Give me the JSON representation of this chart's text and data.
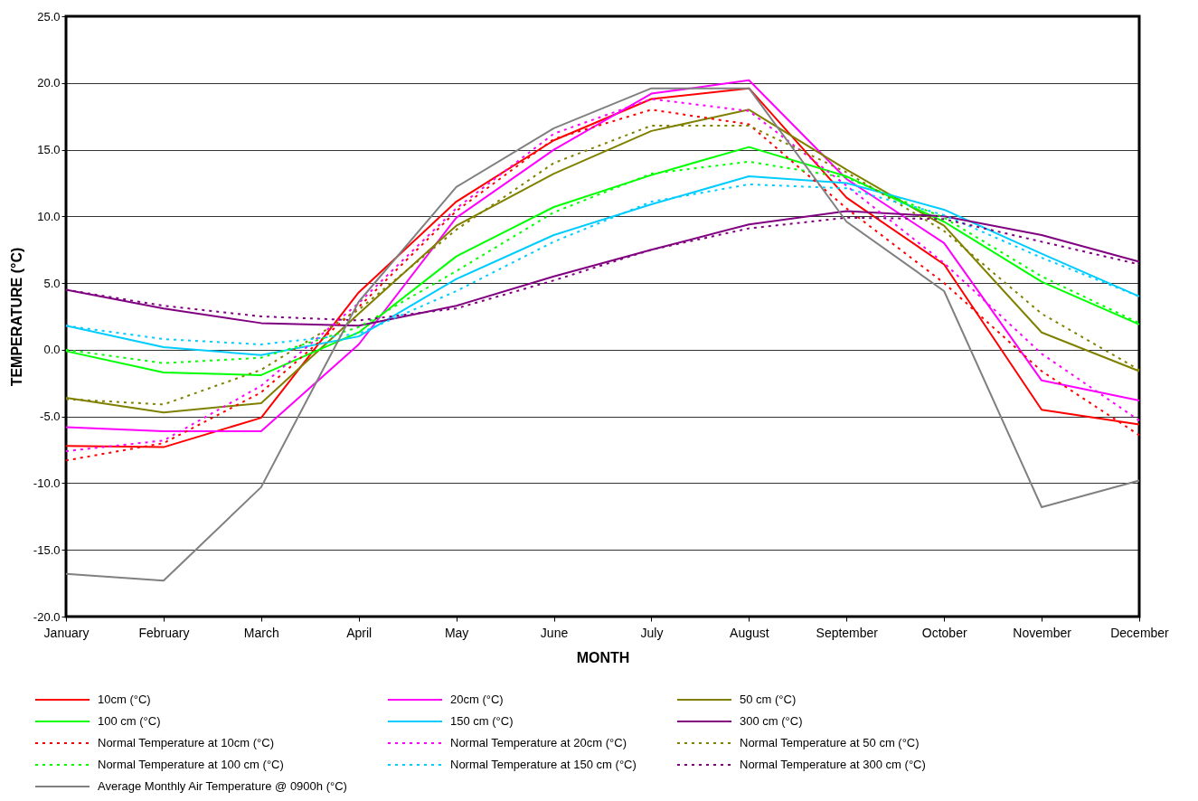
{
  "chart_data": {
    "type": "line",
    "xlabel": "MONTH",
    "ylabel": "TEMPERATURE (°C)",
    "categories": [
      "January",
      "February",
      "March",
      "April",
      "May",
      "June",
      "July",
      "August",
      "September",
      "October",
      "November",
      "December"
    ],
    "ylim": [
      -20,
      25
    ],
    "yticks": [
      {
        "value": -20,
        "label": "-20.0"
      },
      {
        "value": -15,
        "label": "-15.0"
      },
      {
        "value": -10,
        "label": "-10.0"
      },
      {
        "value": -5,
        "label": "-5.0"
      },
      {
        "value": 0,
        "label": "0.0"
      },
      {
        "value": 5,
        "label": "5.0"
      },
      {
        "value": 10,
        "label": "10.0"
      },
      {
        "value": 15,
        "label": "15.0"
      },
      {
        "value": 20,
        "label": "20.0"
      },
      {
        "value": 25,
        "label": "25.0"
      }
    ],
    "grid": "y",
    "legend": "bottom",
    "marker": "none",
    "series": [
      {
        "name": "10cm (°C)",
        "color": "#ff0000",
        "line_style": "solid",
        "values": [
          -7.2,
          -7.3,
          -5.1,
          4.3,
          11.1,
          15.7,
          18.8,
          19.6,
          11.4,
          6.4,
          -4.5,
          -5.6
        ]
      },
      {
        "name": "20cm (°C)",
        "color": "#ff00ff",
        "line_style": "solid",
        "values": [
          -5.8,
          -6.1,
          -6.1,
          0.4,
          9.9,
          15.0,
          19.2,
          20.2,
          12.8,
          8.0,
          -2.3,
          -3.8
        ]
      },
      {
        "name": "50 cm (°C)",
        "color": "#808000",
        "line_style": "solid",
        "values": [
          -3.6,
          -4.7,
          -4.0,
          2.7,
          9.3,
          13.2,
          16.4,
          18.0,
          13.5,
          9.3,
          1.3,
          -1.6
        ]
      },
      {
        "name": "100 cm (°C)",
        "color": "#00ff00",
        "line_style": "solid",
        "values": [
          -0.1,
          -1.7,
          -1.9,
          1.3,
          7.0,
          10.7,
          13.1,
          15.2,
          13.0,
          9.6,
          5.1,
          1.9
        ]
      },
      {
        "name": "150 cm (°C)",
        "color": "#00ccff",
        "line_style": "solid",
        "values": [
          1.8,
          0.2,
          -0.4,
          1.0,
          5.3,
          8.6,
          10.9,
          13.0,
          12.5,
          10.5,
          7.2,
          4.0
        ]
      },
      {
        "name": "300 cm (°C)",
        "color": "#800080",
        "line_style": "solid",
        "values": [
          4.5,
          3.1,
          2.0,
          1.8,
          3.3,
          5.5,
          7.5,
          9.4,
          10.4,
          10.0,
          8.6,
          6.6
        ]
      },
      {
        "name": "Normal Temperature at 10cm (°C)",
        "color": "#ff0000",
        "line_style": "dotted",
        "values": [
          -8.3,
          -7.0,
          -3.2,
          3.2,
          10.4,
          15.8,
          18.0,
          16.9,
          10.6,
          5.0,
          -1.6,
          -6.4
        ]
      },
      {
        "name": "Normal Temperature at 20cm (°C)",
        "color": "#ff00ff",
        "line_style": "dotted",
        "values": [
          -7.6,
          -6.8,
          -2.7,
          3.5,
          10.6,
          16.2,
          18.8,
          17.9,
          12.3,
          6.5,
          -0.3,
          -5.3
        ]
      },
      {
        "name": "Normal Temperature at 50 cm (°C)",
        "color": "#808000",
        "line_style": "dotted",
        "values": [
          -3.7,
          -4.1,
          -1.5,
          3.0,
          9.0,
          14.0,
          16.8,
          16.8,
          13.3,
          8.9,
          2.7,
          -1.5
        ]
      },
      {
        "name": "Normal Temperature at 100 cm (°C)",
        "color": "#00ff00",
        "line_style": "dotted",
        "values": [
          0.0,
          -1.0,
          -0.6,
          1.7,
          5.9,
          10.3,
          13.2,
          14.1,
          12.9,
          9.9,
          5.5,
          2.0
        ]
      },
      {
        "name": "Normal Temperature at 150 cm (°C)",
        "color": "#00ccff",
        "line_style": "dotted",
        "values": [
          1.8,
          0.8,
          0.4,
          1.2,
          4.4,
          8.1,
          11.1,
          12.4,
          12.1,
          10.1,
          6.9,
          4.0
        ]
      },
      {
        "name": "Normal Temperature at 300 cm (°C)",
        "color": "#800080",
        "line_style": "dotted",
        "values": [
          4.5,
          3.3,
          2.5,
          2.2,
          3.1,
          5.2,
          7.5,
          9.1,
          9.9,
          9.8,
          8.1,
          6.4
        ]
      },
      {
        "name": "Average Monthly Air Temperature @ 0900h (°C)",
        "color": "#808080",
        "line_style": "solid",
        "values": [
          -16.8,
          -17.3,
          -10.3,
          3.6,
          12.2,
          16.6,
          19.6,
          19.6,
          9.6,
          4.4,
          -11.8,
          -9.8
        ]
      }
    ]
  }
}
